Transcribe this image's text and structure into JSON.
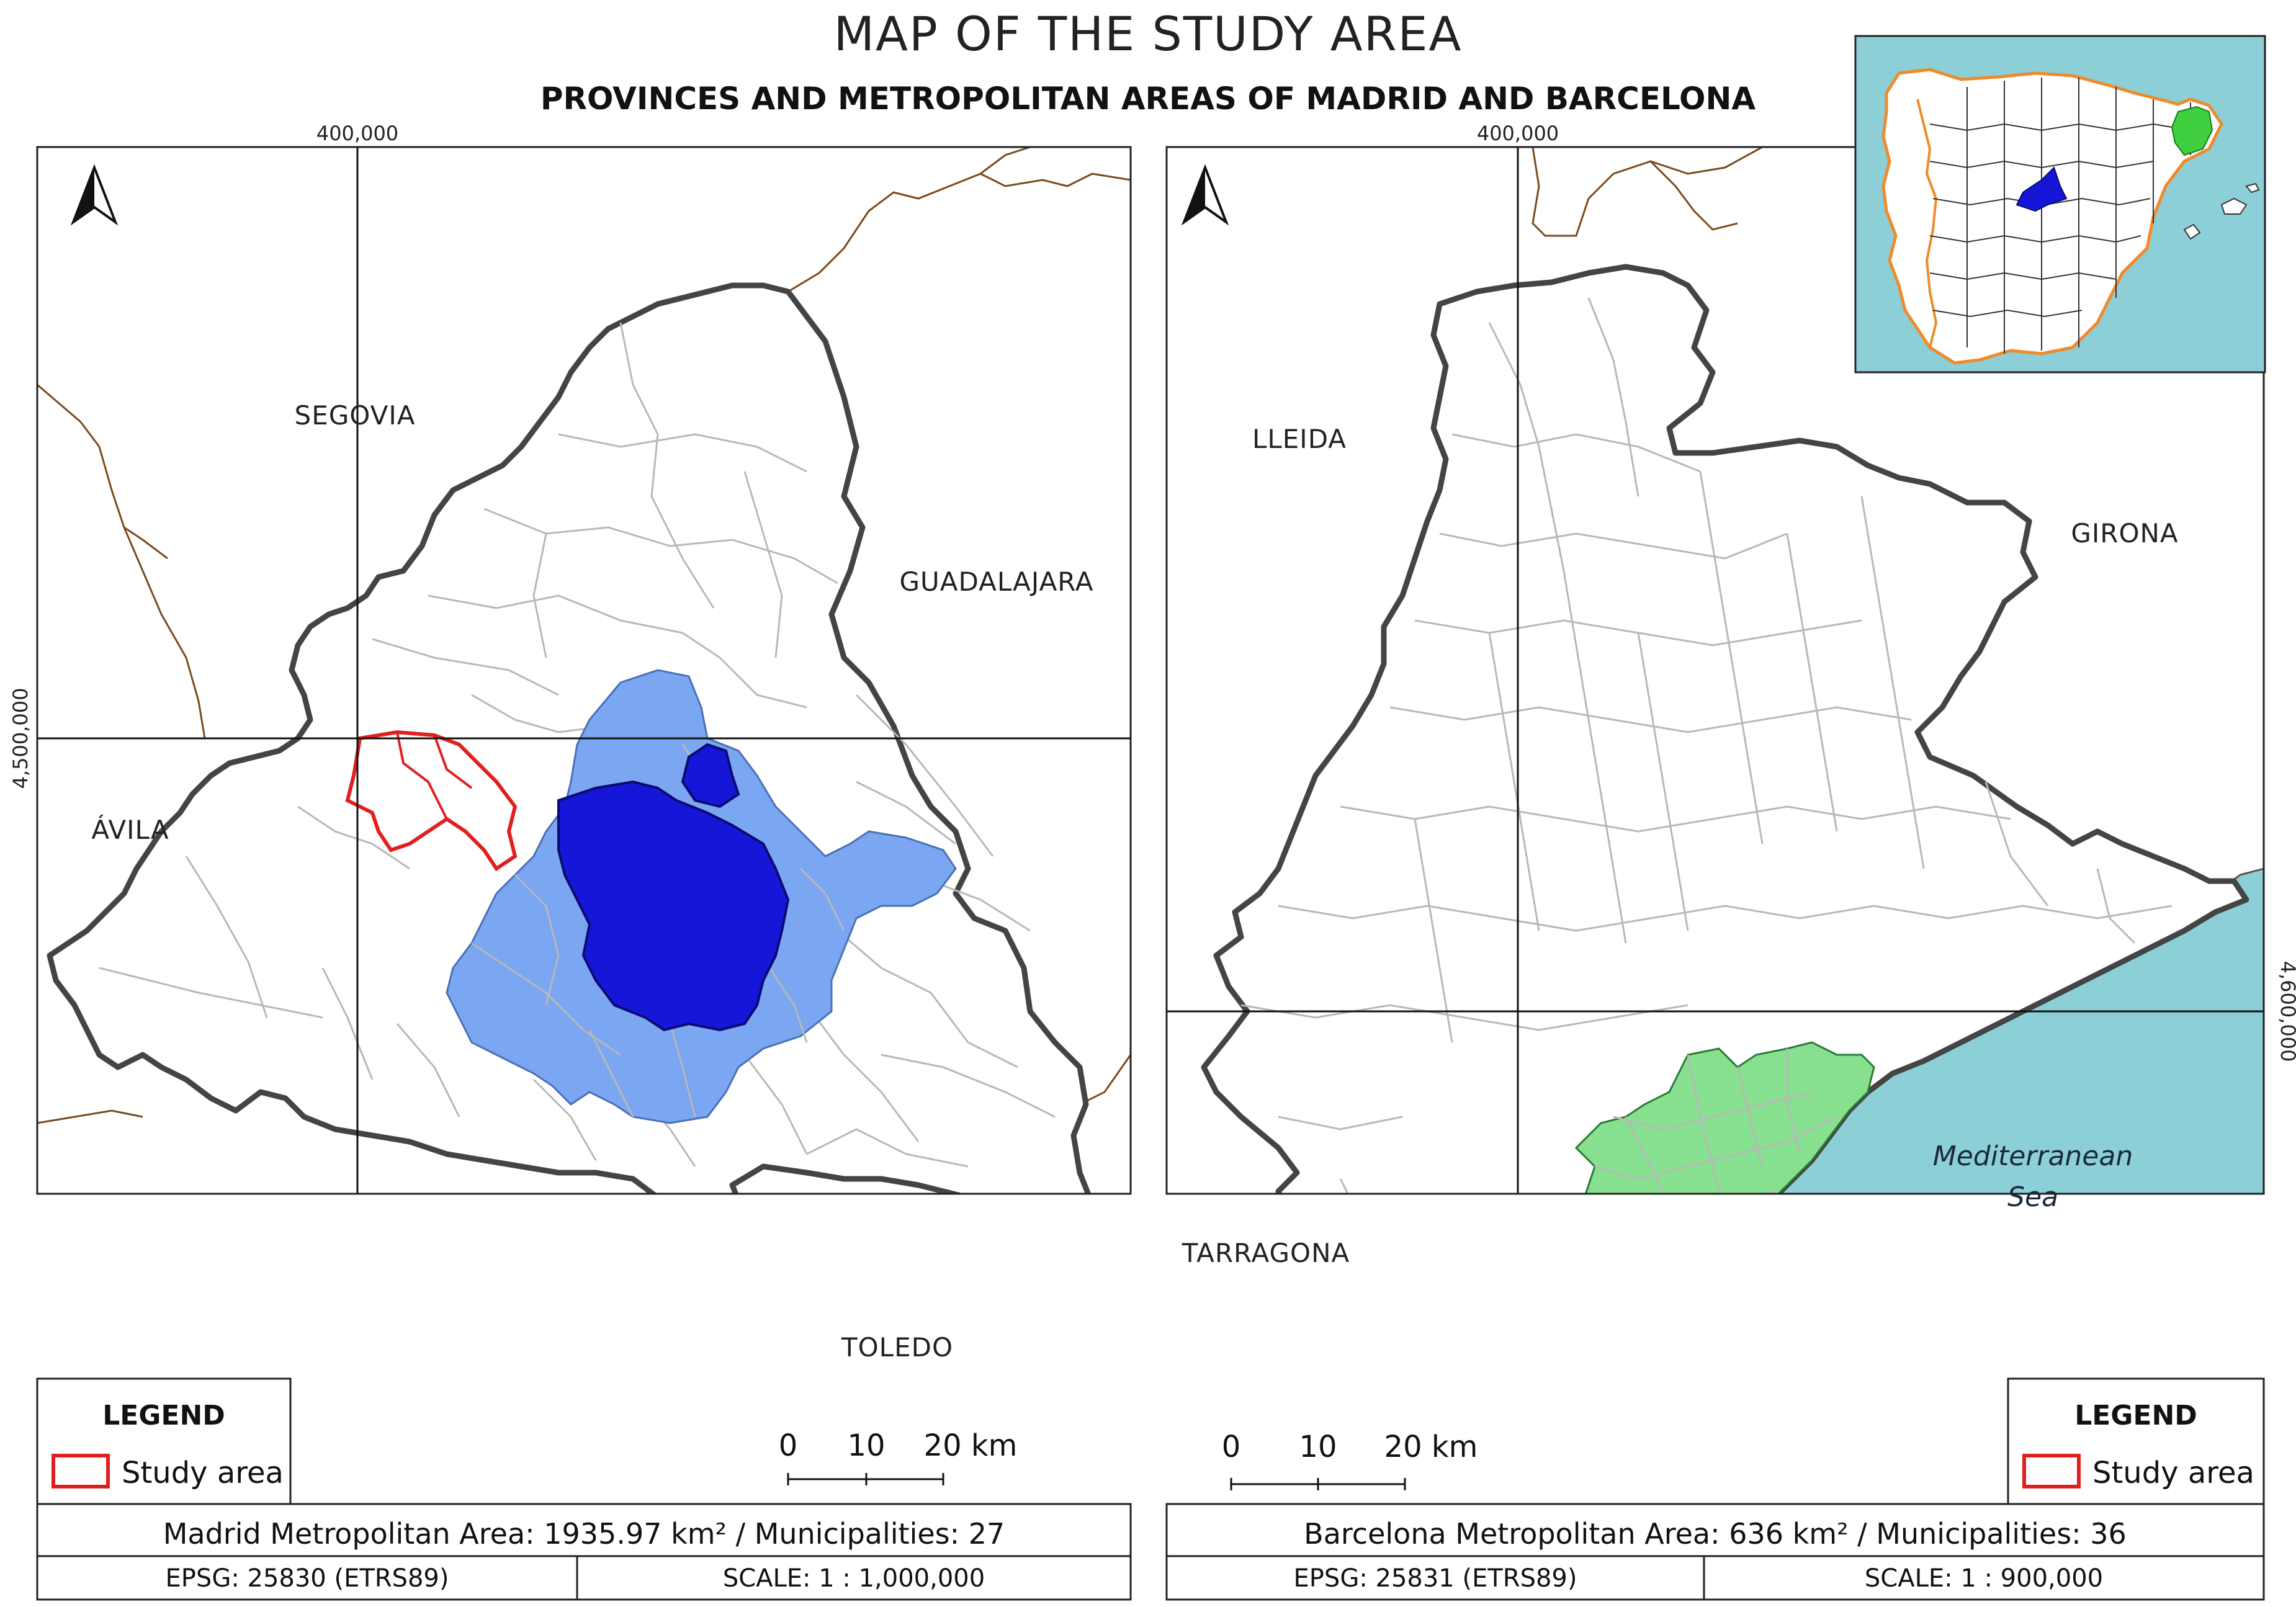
{
  "title": "MAP OF THE STUDY AREA",
  "subtitle": "PROVINCES AND METROPOLITAN AREAS OF MADRID AND BARCELONA",
  "colors": {
    "sea": "#8ccfd6",
    "madrid_core": "#1616d9",
    "madrid_metro": "#7aa6f2",
    "barcelona_metro": "#86e08f",
    "study_area_outline": "#e02020",
    "province_border": "#7a4a1e",
    "community_border": "#444444",
    "municipality_border": "#b8b8b8",
    "inset_coast": "#f08a2a"
  },
  "madrid_panel": {
    "coord_x": "400,000",
    "coord_y": "4,500,000",
    "provinces": {
      "segovia": "SEGOVIA",
      "guadalajara": "GUADALAJARA",
      "avila": "ÁVILA",
      "toledo": "TOLEDO"
    },
    "north_arrow_icon": "north-arrow-icon",
    "legend": {
      "title": "LEGEND",
      "item": "Study area"
    },
    "scale_bar": {
      "t0": "0",
      "t1": "10",
      "t2": "20 km"
    },
    "info": "Madrid Metropolitan Area:  1935.97 km² / Municipalities: 27",
    "epsg": "EPSG: 25830 (ETRS89)",
    "scale": "SCALE: 1 : 1,000,000"
  },
  "barcelona_panel": {
    "coord_x": "400,000",
    "coord_y": "4,600,000",
    "provinces": {
      "lleida": "LLEIDA",
      "girona": "GIRONA",
      "tarragona": "TARRAGONA"
    },
    "sea_label_1": "Mediterranean",
    "sea_label_2": "Sea",
    "north_arrow_icon": "north-arrow-icon",
    "legend": {
      "title": "LEGEND",
      "item": "Study area"
    },
    "scale_bar": {
      "t0": "0",
      "t1": "10",
      "t2": "20 km"
    },
    "info": "Barcelona Metropolitan Area: 636 km² / Municipalities: 36",
    "epsg": "EPSG: 25831 (ETRS89)",
    "scale": "SCALE: 1 : 900,000"
  }
}
